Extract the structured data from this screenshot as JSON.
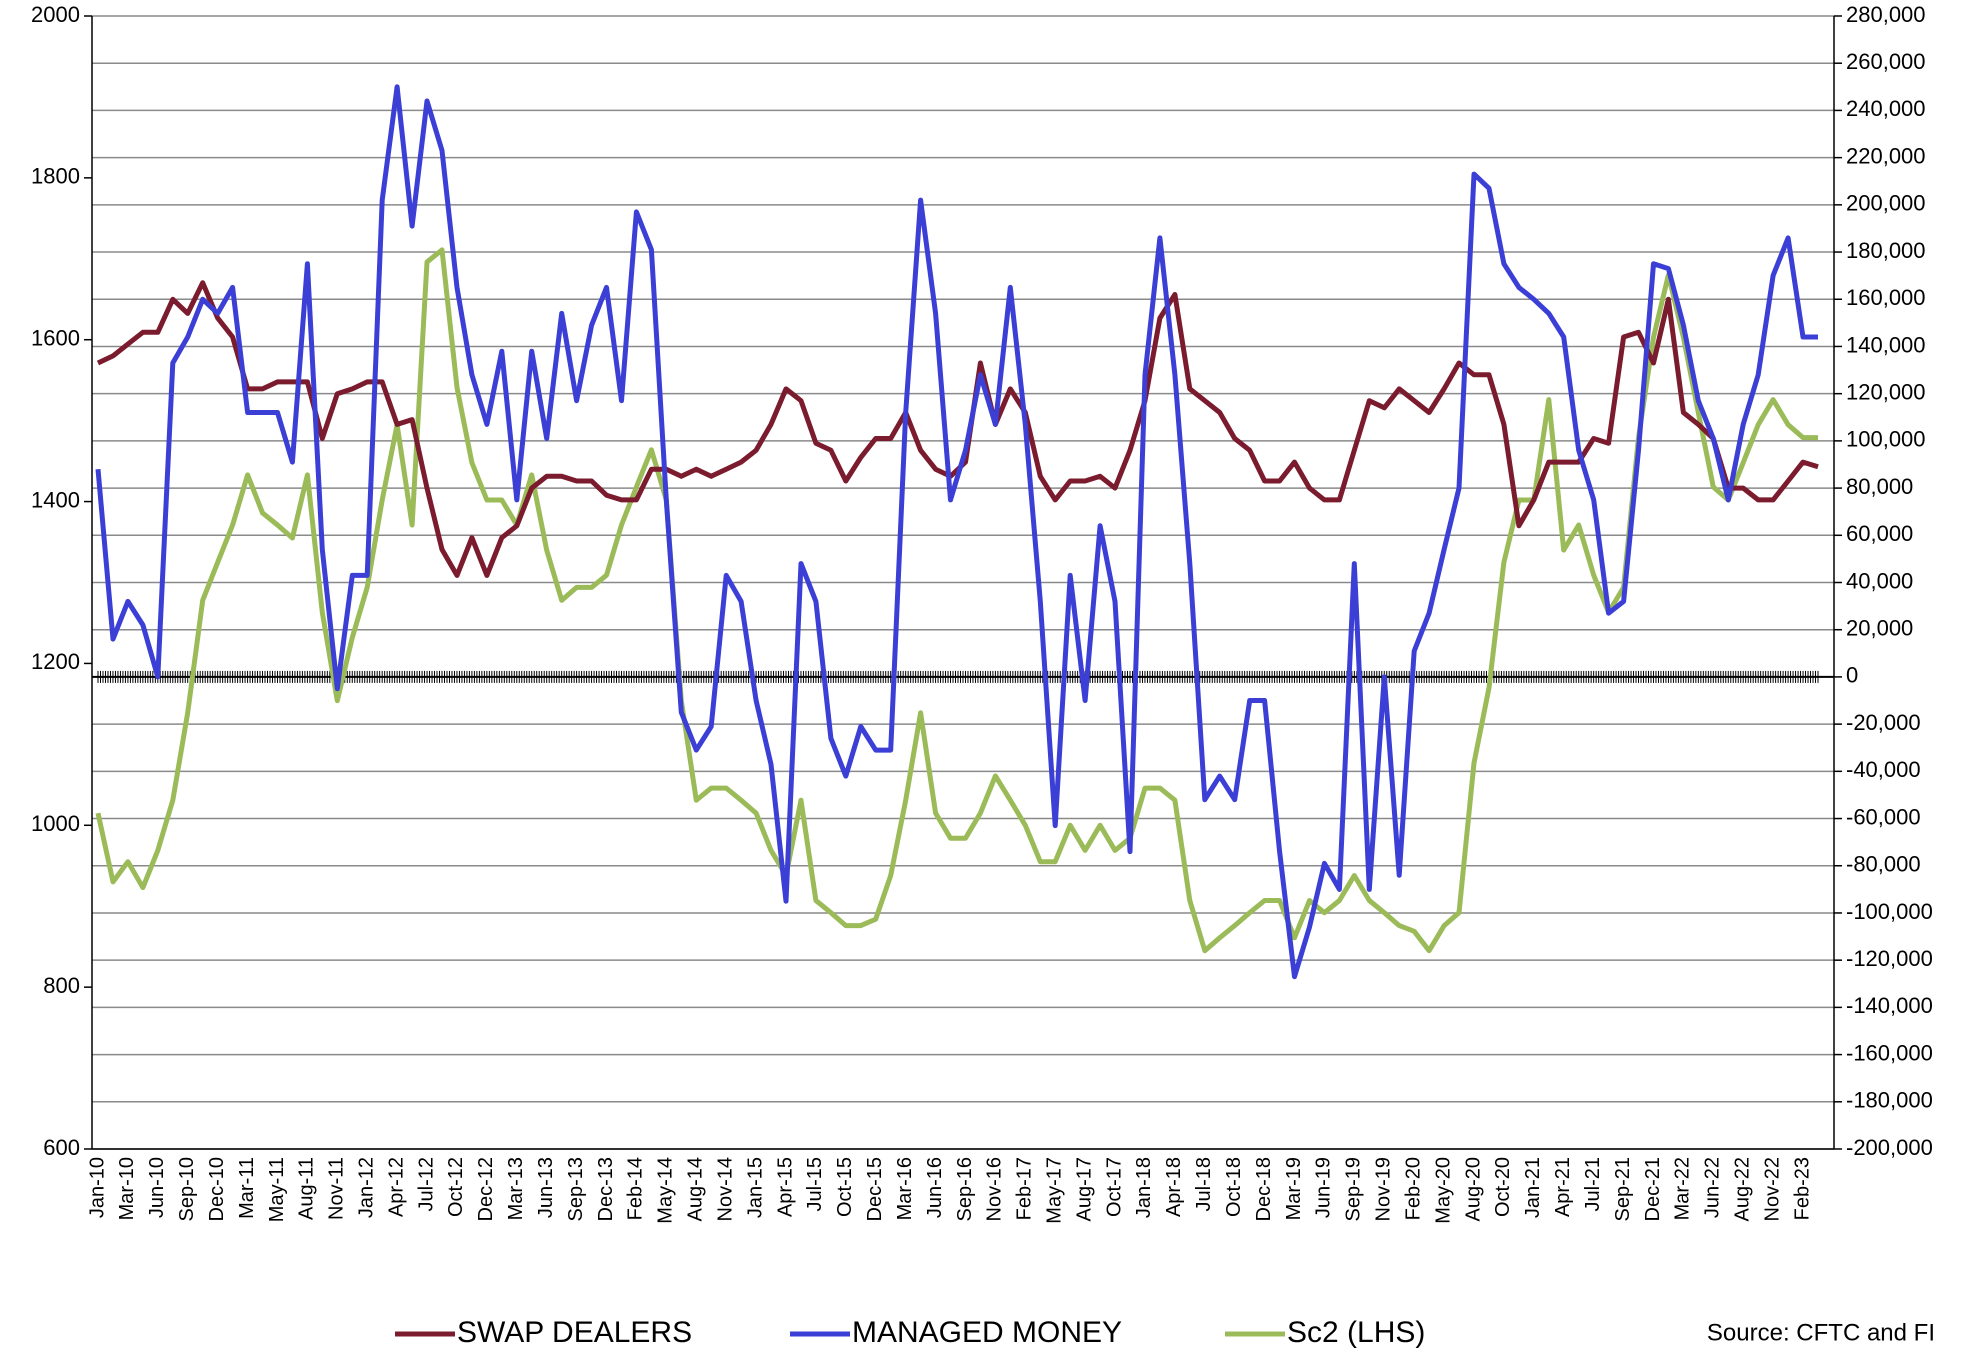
{
  "chart_data": {
    "type": "line",
    "categories": [
      "Jan-10",
      null,
      "Mar-10",
      null,
      "Jun-10",
      null,
      "Sep-10",
      null,
      "Dec-10",
      null,
      "Mar-11",
      null,
      "May-11",
      null,
      "Aug-11",
      null,
      "Nov-11",
      null,
      "Jan-12",
      null,
      "Apr-12",
      null,
      "Jul-12",
      null,
      "Oct-12",
      null,
      "Dec-12",
      null,
      "Mar-13",
      null,
      "Jun-13",
      null,
      "Sep-13",
      null,
      "Dec-13",
      null,
      "Feb-14",
      null,
      "May-14",
      null,
      "Aug-14",
      null,
      "Nov-14",
      null,
      "Jan-15",
      null,
      "Apr-15",
      null,
      "Jul-15",
      null,
      "Oct-15",
      null,
      "Dec-15",
      null,
      "Mar-16",
      null,
      "Jun-16",
      null,
      "Sep-16",
      null,
      "Nov-16",
      null,
      "Feb-17",
      null,
      "May-17",
      null,
      "Aug-17",
      null,
      "Oct-17",
      null,
      "Jan-18",
      null,
      "Apr-18",
      null,
      "Jul-18",
      null,
      "Oct-18",
      null,
      "Dec-18",
      null,
      "Mar-19",
      null,
      "Jun-19",
      null,
      "Sep-19",
      null,
      "Nov-19",
      null,
      "Feb-20",
      null,
      "May-20",
      null,
      "Aug-20",
      null,
      "Oct-20",
      null,
      "Jan-21",
      null,
      "Apr-21",
      null,
      "Jul-21",
      null,
      "Sep-21",
      null,
      "Dec-21",
      null,
      "Mar-22",
      null,
      "Jun-22",
      null,
      "Aug-22",
      null,
      "Nov-22",
      null,
      "Feb-23",
      null
    ],
    "series": [
      {
        "name": "SWAP DEALERS",
        "color": "#7b1b2e",
        "axis": "y2",
        "values": [
          133000,
          136000,
          141000,
          146000,
          146000,
          160000,
          154000,
          167000,
          152000,
          144000,
          122000,
          122000,
          125000,
          125000,
          125000,
          101000,
          120000,
          122000,
          125000,
          125000,
          107000,
          109000,
          80000,
          54000,
          43000,
          59000,
          43000,
          59000,
          64000,
          80000,
          85000,
          85000,
          83000,
          83000,
          77000,
          75000,
          75000,
          88000,
          88000,
          85000,
          88000,
          85000,
          88000,
          91000,
          96000,
          107000,
          122000,
          117000,
          99000,
          96000,
          83000,
          93000,
          101000,
          101000,
          112000,
          96000,
          88000,
          85000,
          91000,
          133000,
          107000,
          122000,
          112000,
          85000,
          75000,
          83000,
          83000,
          85000,
          80000,
          96000,
          117000,
          152000,
          162000,
          122000,
          117000,
          112000,
          101000,
          96000,
          83000,
          83000,
          91000,
          80000,
          75000,
          75000,
          96000,
          117000,
          114000,
          122000,
          117000,
          112000,
          122000,
          133000,
          128000,
          128000,
          107000,
          64000,
          75000,
          91000,
          91000,
          91000,
          101000,
          99000,
          144000,
          146000,
          133000,
          160000,
          112000,
          107000,
          101000,
          80000,
          80000,
          75000,
          75000,
          83000,
          91000,
          89000
        ]
      },
      {
        "name": "MANAGED MONEY",
        "color": "#3b3fd6",
        "axis": "y2",
        "values": [
          88000,
          16000,
          32000,
          22000,
          0,
          133000,
          144000,
          160000,
          154000,
          165000,
          112000,
          112000,
          112000,
          91000,
          175000,
          54000,
          -5000,
          43000,
          43000,
          202000,
          250000,
          191000,
          244000,
          223000,
          165000,
          128000,
          107000,
          138000,
          75000,
          138000,
          101000,
          154000,
          117000,
          149000,
          165000,
          117000,
          197000,
          181000,
          75000,
          -15000,
          -31000,
          -21000,
          43000,
          32000,
          -10000,
          -37000,
          -95000,
          48000,
          32000,
          -26000,
          -42000,
          -21000,
          -31000,
          -31000,
          112000,
          202000,
          154000,
          75000,
          96000,
          128000,
          107000,
          165000,
          107000,
          32000,
          -63000,
          43000,
          -10000,
          64000,
          32000,
          -74000,
          128000,
          186000,
          128000,
          48000,
          -52000,
          -42000,
          -52000,
          -10000,
          -10000,
          -74000,
          -127000,
          -106000,
          -79000,
          -90000,
          48000,
          -90000,
          0,
          -84000,
          11000,
          27000,
          54000,
          80000,
          213000,
          207000,
          175000,
          165000,
          160000,
          154000,
          144000,
          96000,
          75000,
          27000,
          32000,
          96000,
          175000,
          173000,
          149000,
          117000,
          101000,
          75000,
          107000,
          128000,
          170000,
          186000,
          144000,
          144000
        ]
      },
      {
        "name": "Sc2 (LHS)",
        "color": "#9bbb59",
        "values": [
          1015,
          930,
          955,
          923,
          969,
          1031,
          1139,
          1278,
          1325,
          1371,
          1433,
          1386,
          1371,
          1355,
          1433,
          1263,
          1154,
          1232,
          1294,
          1402,
          1495,
          1371,
          1696,
          1711,
          1541,
          1448,
          1402,
          1402,
          1371,
          1433,
          1340,
          1278,
          1294,
          1294,
          1309,
          1371,
          1418,
          1464,
          1402,
          1154,
          1031,
          1046,
          1046,
          1031,
          1015,
          969,
          938,
          1031,
          907,
          892,
          876,
          876,
          884,
          938,
          1031,
          1139,
          1015,
          984,
          984,
          1015,
          1061,
          1031,
          1000,
          955,
          955,
          1000,
          969,
          1000,
          969,
          984,
          1046,
          1046,
          1031,
          907,
          845,
          861,
          876,
          892,
          907,
          907,
          861,
          907,
          892,
          907,
          938,
          907,
          892,
          876,
          869,
          845,
          876,
          892,
          1077,
          1170,
          1325,
          1402,
          1402,
          1526,
          1340,
          1371,
          1309,
          1263,
          1294,
          1479,
          1603,
          1680,
          1603,
          1510,
          1418,
          1402,
          1448,
          1495,
          1526,
          1495,
          1479,
          1479
        ]
      }
    ],
    "ylim": [
      600,
      2000
    ],
    "yticks": [
      600,
      800,
      1000,
      1200,
      1400,
      1600,
      1800,
      2000
    ],
    "y2lim": [
      -200000,
      280000
    ],
    "y2ticks": [
      {
        "value": -200000,
        "label": "-200,000"
      },
      {
        "value": -180000,
        "label": "-180,000"
      },
      {
        "value": -160000,
        "label": "-160,000"
      },
      {
        "value": -140000,
        "label": "-140,000"
      },
      {
        "value": -120000,
        "label": "-120,000"
      },
      {
        "value": -100000,
        "label": "-100,000"
      },
      {
        "value": -80000,
        "label": "-80,000"
      },
      {
        "value": -60000,
        "label": "-60,000"
      },
      {
        "value": -40000,
        "label": "-40,000"
      },
      {
        "value": -20000,
        "label": "-20,000"
      },
      0,
      {
        "value": 20000,
        "label": "20,000"
      },
      {
        "value": 40000,
        "label": "40,000"
      },
      {
        "value": 60000,
        "label": "60,000"
      },
      {
        "value": 80000,
        "label": "80,000"
      },
      {
        "value": 100000,
        "label": "100,000"
      },
      {
        "value": 120000,
        "label": "120,000"
      },
      {
        "value": 140000,
        "label": "140,000"
      },
      {
        "value": 160000,
        "label": "160,000"
      },
      {
        "value": 180000,
        "label": "180,000"
      },
      {
        "value": 200000,
        "label": "200,000"
      },
      {
        "value": 220000,
        "label": "220,000"
      },
      {
        "value": 240000,
        "label": "240,000"
      },
      {
        "value": 260000,
        "label": "260,000"
      },
      {
        "value": 280000,
        "label": "280,000"
      }
    ],
    "grid": true,
    "legend": "bottom",
    "source": "Source: CFTC and FI"
  }
}
